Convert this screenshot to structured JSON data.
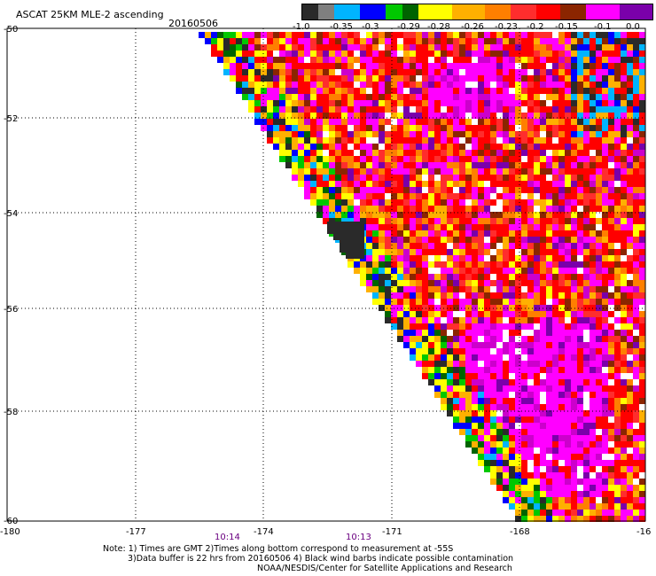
{
  "title": "ASCAT 25KM MLE-2 ascending",
  "date": "20160506",
  "legend": {
    "labels": [
      "-1.0",
      "-0.35",
      "-0.3",
      "-0.29",
      "-0.28",
      "-0.26",
      "-0.23",
      "-0.2",
      "-0.15",
      "-0.1",
      "0.0"
    ],
    "colors": [
      "#2a2a2a",
      "#7f7f7f",
      "#00b4ff",
      "#0000ff",
      "#00c800",
      "#006400",
      "#ffff00",
      "#ffb000",
      "#ff7f00",
      "#ff2d2d",
      "#ff0000",
      "#8b2500",
      "#ff00ff",
      "#7a00aa"
    ]
  },
  "axes": {
    "lat_labels": [
      "-50",
      "-52",
      "-54",
      "-56",
      "-58",
      "-60"
    ],
    "lon_labels": [
      "-180",
      "-177",
      "-174",
      "-171",
      "-168",
      "-16"
    ]
  },
  "time_labels": [
    "10:14",
    "10:13"
  ],
  "notes": [
    "Note: 1) Times are GMT 2)Times along bottom correspond to measurement at -55S",
    "3)Data buffer is 22 hrs from 20160506 4) Black wind barbs indicate possible contamination",
    "NOAA/NESDIS/Center for Satellite Applications and Research"
  ]
}
